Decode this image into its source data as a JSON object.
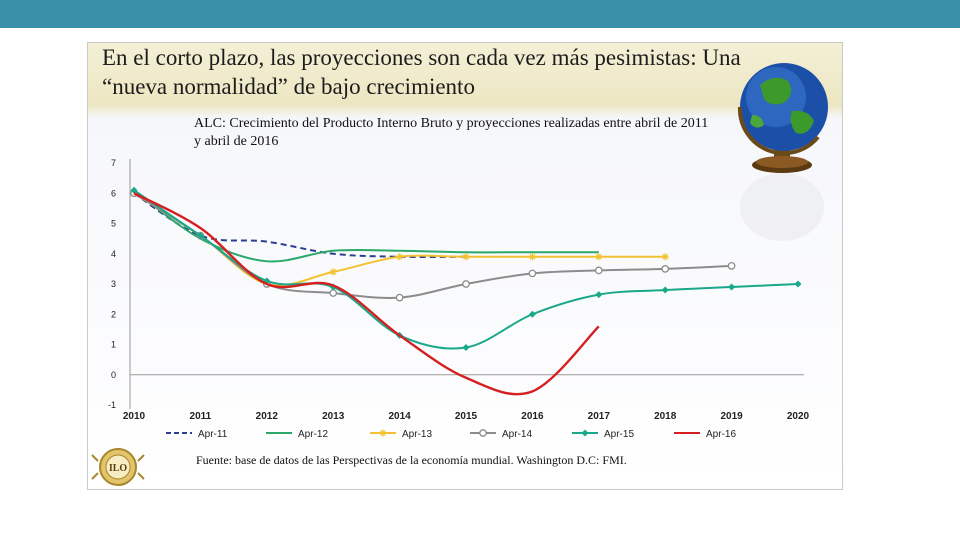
{
  "slide": {
    "title": "En el corto plazo, las proyecciones son cada vez más pesimistas: Una “nueva normalidad” de bajo crecimiento",
    "source": "Fuente: base de datos de las Perspectivas de la economía mundial. Washington D.C: FMI.",
    "seal_text": "ILO"
  },
  "chart_data": {
    "type": "line",
    "title": "ALC: Crecimiento del Producto Interno Bruto y proyecciones realizadas entre abril de 2011 y abril de 2016",
    "x": [
      2010,
      2011,
      2012,
      2013,
      2014,
      2015,
      2016,
      2017,
      2018,
      2019,
      2020
    ],
    "y_ticks": [
      -1,
      0,
      1,
      2,
      3,
      4,
      5,
      6,
      7
    ],
    "ylim": [
      -1,
      7
    ],
    "xlabel": "",
    "ylabel": "",
    "series": [
      {
        "name": "Apr-11",
        "color": "#2a3f8f",
        "dash": true,
        "marker": "none",
        "values": [
          6.0,
          4.6,
          4.4,
          4.0,
          3.9,
          3.9,
          null,
          null,
          null,
          null,
          null
        ]
      },
      {
        "name": "Apr-12",
        "color": "#2aa86a",
        "dash": false,
        "marker": "none",
        "values": [
          6.1,
          4.5,
          3.75,
          4.1,
          4.1,
          4.05,
          4.05,
          4.05,
          null,
          null,
          null
        ]
      },
      {
        "name": "Apr-13",
        "color": "#f2c230",
        "dash": false,
        "marker": "star",
        "values": [
          6.0,
          4.6,
          3.0,
          3.4,
          3.9,
          3.9,
          3.9,
          3.9,
          3.9,
          null,
          null
        ]
      },
      {
        "name": "Apr-14",
        "color": "#8c8c8c",
        "dash": false,
        "marker": "circle",
        "values": [
          6.0,
          4.6,
          3.0,
          2.7,
          2.55,
          3.0,
          3.35,
          3.45,
          3.5,
          3.6,
          null
        ]
      },
      {
        "name": "Apr-15",
        "color": "#1aa88a",
        "dash": false,
        "marker": "diamond",
        "values": [
          6.1,
          4.6,
          3.1,
          2.9,
          1.3,
          0.9,
          2.0,
          2.65,
          2.8,
          2.9,
          3.0
        ]
      },
      {
        "name": "Apr-16",
        "color": "#d42020",
        "dash": false,
        "marker": "none",
        "values": [
          6.0,
          4.85,
          3.0,
          2.95,
          1.3,
          -0.1,
          -0.55,
          1.6,
          null,
          null,
          null
        ]
      }
    ]
  }
}
